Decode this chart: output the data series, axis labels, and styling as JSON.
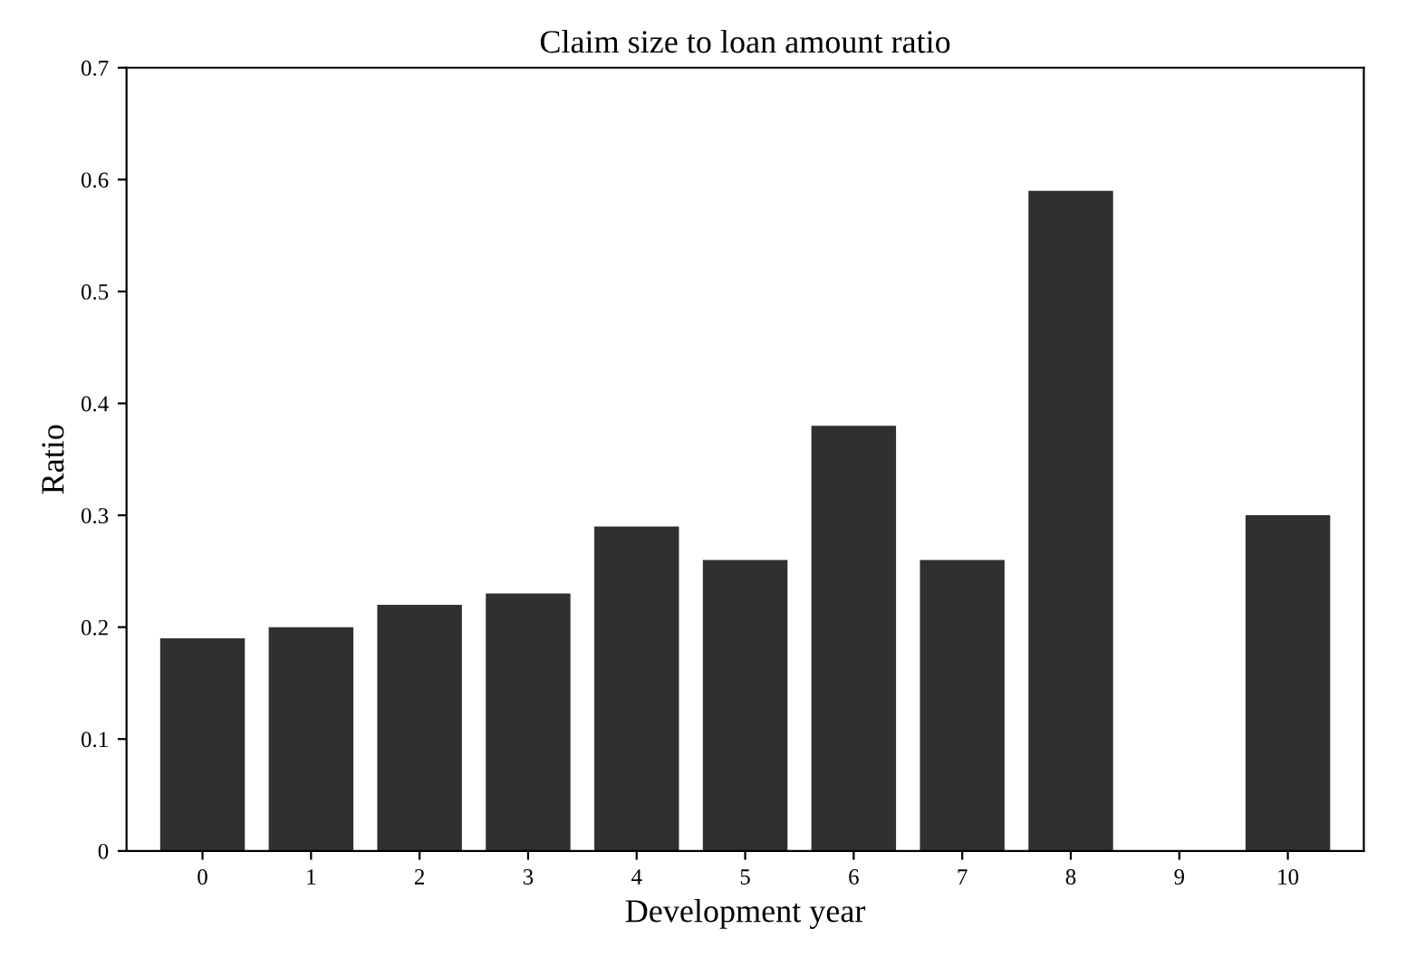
{
  "chart_data": {
    "type": "bar",
    "title": "Claim size to loan amount ratio",
    "xlabel": "Development year",
    "ylabel": "Ratio",
    "categories": [
      "0",
      "1",
      "2",
      "3",
      "4",
      "5",
      "6",
      "7",
      "8",
      "9",
      "10"
    ],
    "values": [
      0.19,
      0.2,
      0.22,
      0.23,
      0.29,
      0.26,
      0.38,
      0.26,
      0.59,
      null,
      0.3
    ],
    "color": "#303030",
    "ylim": [
      0,
      0.7
    ],
    "yticks": [
      0,
      0.1,
      0.2,
      0.3,
      0.4,
      0.5,
      0.6,
      0.7
    ],
    "grid": false
  }
}
